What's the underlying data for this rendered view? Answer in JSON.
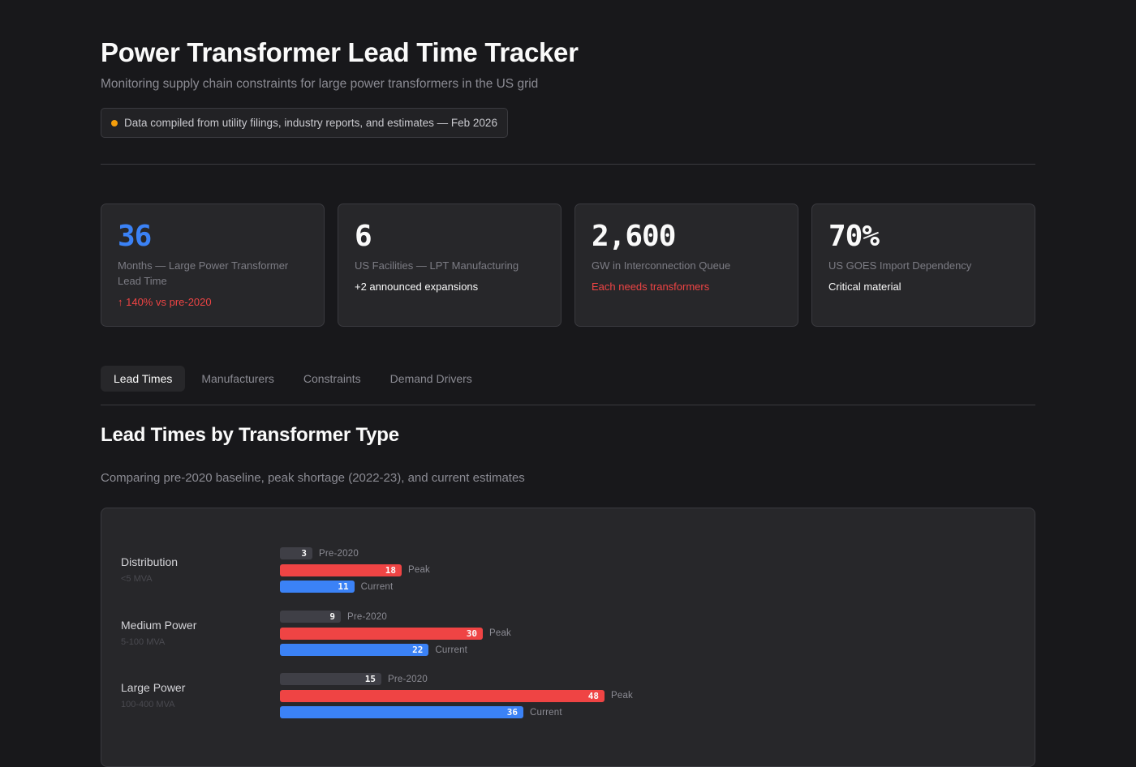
{
  "header": {
    "title": "Power Transformer Lead Time Tracker",
    "subtitle": "Monitoring supply chain constraints for large power transformers in the US grid",
    "source_note": "Data compiled from utility filings, industry reports, and estimates — Feb 2026",
    "source_dot_color": "#f59e0b"
  },
  "stats": [
    {
      "value": "36",
      "label": "Months — Large Power Transformer Lead Time",
      "note": "↑ 140% vs pre-2020",
      "value_color": "#3b82f6",
      "note_color": "#ef4444"
    },
    {
      "value": "6",
      "label": "US Facilities — LPT Manufacturing",
      "note": "+2 announced expansions",
      "value_color": "#fafafa",
      "note_color": "#fafafa"
    },
    {
      "value": "2,600",
      "label": "GW in Interconnection Queue",
      "note": "Each needs transformers",
      "value_color": "#fafafa",
      "note_color": "#ef4444"
    },
    {
      "value": "70%",
      "label": "US GOES Import Dependency",
      "note": "Critical material",
      "value_color": "#fafafa",
      "note_color": "#fafafa"
    }
  ],
  "tabs": [
    {
      "label": "Lead Times",
      "active": true
    },
    {
      "label": "Manufacturers",
      "active": false
    },
    {
      "label": "Constraints",
      "active": false
    },
    {
      "label": "Demand Drivers",
      "active": false
    }
  ],
  "section": {
    "title": "Lead Times by Transformer Type",
    "subtitle": "Comparing pre-2020 baseline, peak shortage (2022-23), and current estimates"
  },
  "colors": {
    "pre2020": "#3f3f46",
    "peak": "#ef4444",
    "current": "#3b82f6"
  },
  "chart_data": {
    "type": "bar",
    "orientation": "horizontal",
    "title": "Lead Times by Transformer Type",
    "subtitle": "Comparing pre-2020 baseline, peak shortage (2022-23), and current estimates",
    "unit": "months",
    "categories": [
      "Distribution",
      "Medium Power",
      "Large Power"
    ],
    "category_subtitles": [
      "<5 MVA",
      "5-100 MVA",
      "100-400 MVA"
    ],
    "series": [
      {
        "name": "Pre-2020",
        "color": "#3f3f46",
        "values": [
          3,
          9,
          15
        ]
      },
      {
        "name": "Peak",
        "color": "#ef4444",
        "values": [
          18,
          30,
          48
        ]
      },
      {
        "name": "Current",
        "color": "#3b82f6",
        "values": [
          11,
          22,
          36
        ]
      }
    ],
    "xlim": [
      0,
      48
    ],
    "grid": false,
    "legend": "inline labels after each bar"
  }
}
